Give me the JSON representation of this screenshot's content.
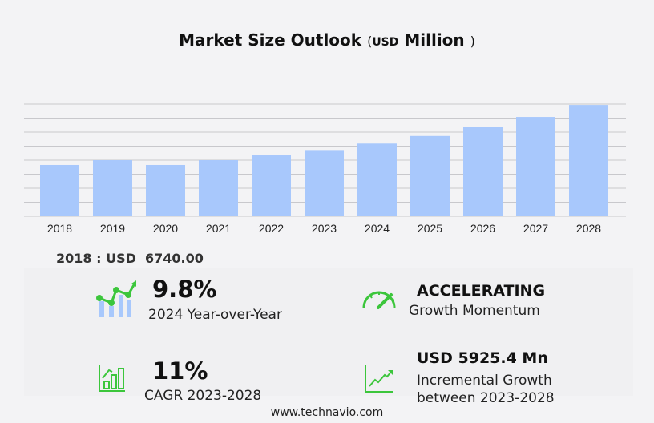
{
  "title": {
    "main": "Market Size Outlook",
    "open": "(",
    "unit": "USD",
    "unit_word": "Million",
    "close": ")"
  },
  "base_year_label": "2018 : USD  6740.00",
  "kpis": {
    "yoy": {
      "value": "9.8%",
      "label": "2024 Year-over-Year",
      "icon": "chart-growth-icon"
    },
    "momentum": {
      "value": "ACCELERATING",
      "label": "Growth Momentum",
      "icon": "speedometer-icon"
    },
    "cagr": {
      "value": "11%",
      "label": "CAGR 2023-2028",
      "icon": "bar-chart-icon"
    },
    "incremental": {
      "value": "USD 5925.4 Mn",
      "label1": "Incremental Growth",
      "label2": "between 2023-2028",
      "icon": "trend-line-icon"
    }
  },
  "footer": "www.technavio.com",
  "colors": {
    "bar": "#a8c8fc",
    "accent": "#3cc63c",
    "grid": "#c8c8cc"
  },
  "chart_data": {
    "type": "bar",
    "title": "Market Size Outlook (USD Million)",
    "categories": [
      "2018",
      "2019",
      "2020",
      "2021",
      "2022",
      "2023",
      "2024",
      "2025",
      "2026",
      "2027",
      "2028"
    ],
    "values": [
      6740,
      7370,
      6740,
      7370,
      8000,
      8700,
      9553,
      10550,
      11700,
      13050,
      14625
    ],
    "ylim": [
      0,
      14740
    ],
    "grid": true,
    "xlabel": "",
    "ylabel": ""
  }
}
